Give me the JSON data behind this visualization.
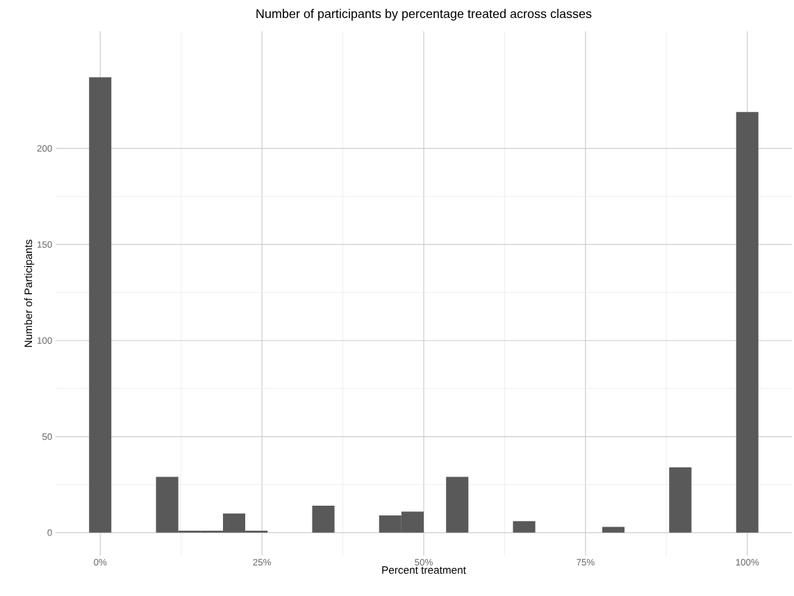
{
  "chart_data": {
    "type": "histogram",
    "title": "Number of participants by percentage treated across classes",
    "xlabel": "Percent treatment",
    "ylabel": "Number of Participants",
    "color": "#595959",
    "bins": [
      -1.72,
      1.72,
      5.17,
      8.62,
      12.07,
      15.52,
      18.97,
      22.41,
      25.86,
      29.31,
      32.76,
      36.21,
      39.66,
      43.1,
      46.55,
      50.0,
      53.45,
      56.9,
      60.34,
      63.79,
      67.24,
      70.69,
      74.14,
      77.59,
      81.03,
      84.48,
      87.93,
      91.38,
      94.83,
      98.28,
      101.72
    ],
    "values": [
      237,
      0,
      0,
      29,
      1,
      1,
      10,
      1,
      0,
      0,
      14,
      0,
      0,
      9,
      11,
      0,
      29,
      0,
      0,
      6,
      0,
      0,
      0,
      3,
      0,
      0,
      34,
      0,
      0,
      219
    ],
    "xlim": [
      -6.9,
      106.9
    ],
    "ylim": [
      -12,
      261
    ],
    "xticks": [
      {
        "value": 0,
        "label": "0%"
      },
      {
        "value": 25,
        "label": "25%"
      },
      {
        "value": 50,
        "label": "50%"
      },
      {
        "value": 75,
        "label": "75%"
      },
      {
        "value": 100,
        "label": "100%"
      }
    ],
    "yticks": [
      0,
      50,
      100,
      150,
      200
    ],
    "grid": true
  }
}
